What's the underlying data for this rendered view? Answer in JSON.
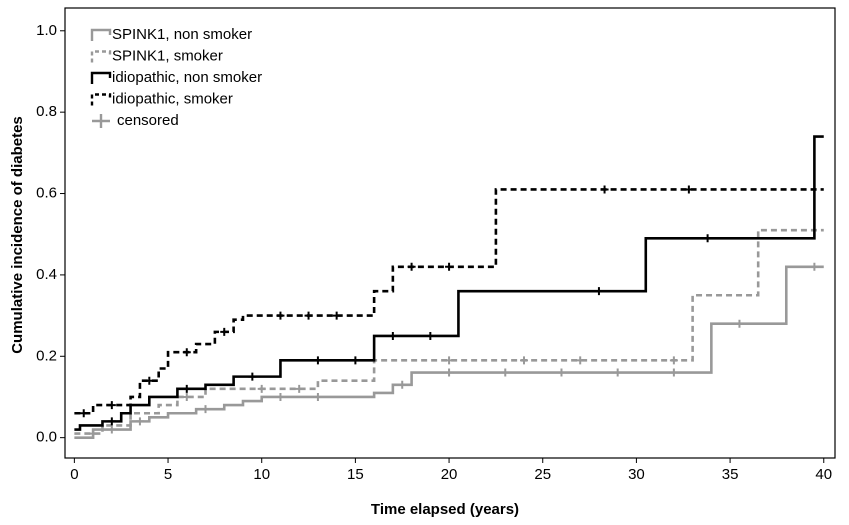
{
  "chart_data": {
    "type": "line",
    "step": "post",
    "xlabel": "Time elapsed (years)",
    "ylabel": "Cumulative incidence of diabetes",
    "xlim": [
      -0.5,
      40.6
    ],
    "ylim": [
      -0.05,
      1.056
    ],
    "xticks": [
      0,
      5,
      10,
      15,
      20,
      25,
      30,
      35,
      40
    ],
    "yticks": [
      {
        "value": 0,
        "label": "0.0"
      },
      {
        "value": 0.2,
        "label": "0.2"
      },
      {
        "value": 0.4,
        "label": "0.4"
      },
      {
        "value": 0.6,
        "label": "0.6"
      },
      {
        "value": 0.8,
        "label": "0.8"
      },
      {
        "value": 1,
        "label": "1.0"
      }
    ],
    "legend": "upper left",
    "censored_label": "censored",
    "censored_color": "#999999",
    "series": [
      {
        "name": "SPINK1, non smoker",
        "color": "#999999",
        "dashed": false,
        "x": [
          0,
          1,
          3,
          4,
          5,
          6.5,
          8,
          9,
          10,
          16,
          17,
          18,
          34,
          38,
          40
        ],
        "values": [
          0,
          0.02,
          0.04,
          0.05,
          0.06,
          0.07,
          0.08,
          0.09,
          0.1,
          0.11,
          0.13,
          0.16,
          0.28,
          0.42,
          0.42
        ],
        "censored": {
          "x": [
            2,
            3.5,
            7,
            11,
            13,
            17.5,
            20,
            23,
            26,
            29,
            32,
            35.5,
            39.5
          ],
          "y": [
            0.02,
            0.04,
            0.07,
            0.1,
            0.1,
            0.13,
            0.16,
            0.16,
            0.16,
            0.16,
            0.16,
            0.28,
            0.42
          ]
        }
      },
      {
        "name": "SPINK1, smoker",
        "color": "#999999",
        "dashed": true,
        "x": [
          0,
          1.5,
          3,
          4.5,
          5.5,
          7,
          13,
          16,
          33,
          36.5,
          40
        ],
        "values": [
          0.01,
          0.03,
          0.06,
          0.08,
          0.1,
          0.12,
          0.14,
          0.19,
          0.35,
          0.51,
          0.51
        ],
        "censored": {
          "x": [
            1,
            6,
            10,
            12,
            20,
            24,
            27,
            32
          ],
          "y": [
            0.01,
            0.1,
            0.12,
            0.12,
            0.19,
            0.19,
            0.19,
            0.19
          ]
        }
      },
      {
        "name": "idiopathic, non smoker",
        "color": "#000000",
        "dashed": false,
        "x": [
          0,
          0.3,
          1.5,
          2.5,
          3,
          4,
          5.5,
          7,
          8.5,
          11,
          16,
          20.5,
          30.5,
          39.5,
          40
        ],
        "values": [
          0.02,
          0.03,
          0.04,
          0.06,
          0.08,
          0.1,
          0.12,
          0.13,
          0.15,
          0.19,
          0.25,
          0.36,
          0.49,
          0.74,
          0.74
        ],
        "censored": {
          "x": [
            2,
            6,
            9.5,
            13,
            15,
            17,
            19,
            28,
            33.8
          ],
          "y": [
            0.04,
            0.12,
            0.15,
            0.19,
            0.19,
            0.25,
            0.25,
            0.36,
            0.49
          ]
        }
      },
      {
        "name": "idiopathic, smoker",
        "color": "#000000",
        "dashed": true,
        "x": [
          0,
          1,
          3,
          3.5,
          4.5,
          5,
          6.5,
          7.5,
          8.5,
          9,
          16,
          17,
          22.5,
          40
        ],
        "values": [
          0.06,
          0.08,
          0.1,
          0.14,
          0.17,
          0.21,
          0.23,
          0.26,
          0.29,
          0.3,
          0.36,
          0.42,
          0.61,
          0.61
        ],
        "censored": {
          "x": [
            0.5,
            2,
            4,
            6,
            8,
            11,
            12.5,
            14,
            18,
            20,
            28.3,
            32.8
          ],
          "y": [
            0.06,
            0.08,
            0.14,
            0.21,
            0.26,
            0.3,
            0.3,
            0.3,
            0.42,
            0.42,
            0.61,
            0.61
          ]
        }
      }
    ]
  }
}
